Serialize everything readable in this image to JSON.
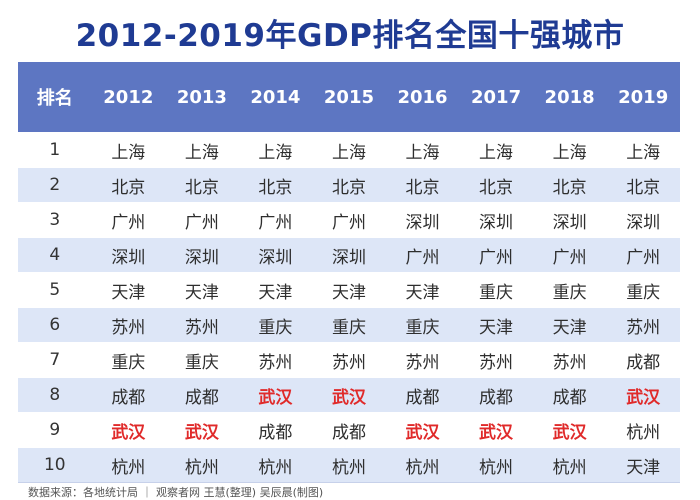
{
  "title": "2012-2019年GDP排名全国十强城市",
  "source": "数据来源：各地统计局 ｜ 观察者网 王慧(整理) 吴辰晨(制图)",
  "colors": {
    "header_bg": "#5d76c2",
    "title": "#1f3b93",
    "stripe": "#dde6f7",
    "highlight": "#e02a2a"
  },
  "chart_data": {
    "type": "table",
    "title": "2012-2019年GDP排名全国十强城市",
    "columns": [
      "排名",
      "2012",
      "2013",
      "2014",
      "2015",
      "2016",
      "2017",
      "2018",
      "2019"
    ],
    "highlight_city": "武汉",
    "rows": [
      [
        "1",
        "上海",
        "上海",
        "上海",
        "上海",
        "上海",
        "上海",
        "上海",
        "上海"
      ],
      [
        "2",
        "北京",
        "北京",
        "北京",
        "北京",
        "北京",
        "北京",
        "北京",
        "北京"
      ],
      [
        "3",
        "广州",
        "广州",
        "广州",
        "广州",
        "深圳",
        "深圳",
        "深圳",
        "深圳"
      ],
      [
        "4",
        "深圳",
        "深圳",
        "深圳",
        "深圳",
        "广州",
        "广州",
        "广州",
        "广州"
      ],
      [
        "5",
        "天津",
        "天津",
        "天津",
        "天津",
        "天津",
        "重庆",
        "重庆",
        "重庆"
      ],
      [
        "6",
        "苏州",
        "苏州",
        "重庆",
        "重庆",
        "重庆",
        "天津",
        "天津",
        "苏州"
      ],
      [
        "7",
        "重庆",
        "重庆",
        "苏州",
        "苏州",
        "苏州",
        "苏州",
        "苏州",
        "成都"
      ],
      [
        "8",
        "成都",
        "成都",
        "武汉",
        "武汉",
        "成都",
        "成都",
        "成都",
        "武汉"
      ],
      [
        "9",
        "武汉",
        "武汉",
        "成都",
        "成都",
        "武汉",
        "武汉",
        "武汉",
        "杭州"
      ],
      [
        "10",
        "杭州",
        "杭州",
        "杭州",
        "杭州",
        "杭州",
        "杭州",
        "杭州",
        "天津"
      ]
    ]
  }
}
